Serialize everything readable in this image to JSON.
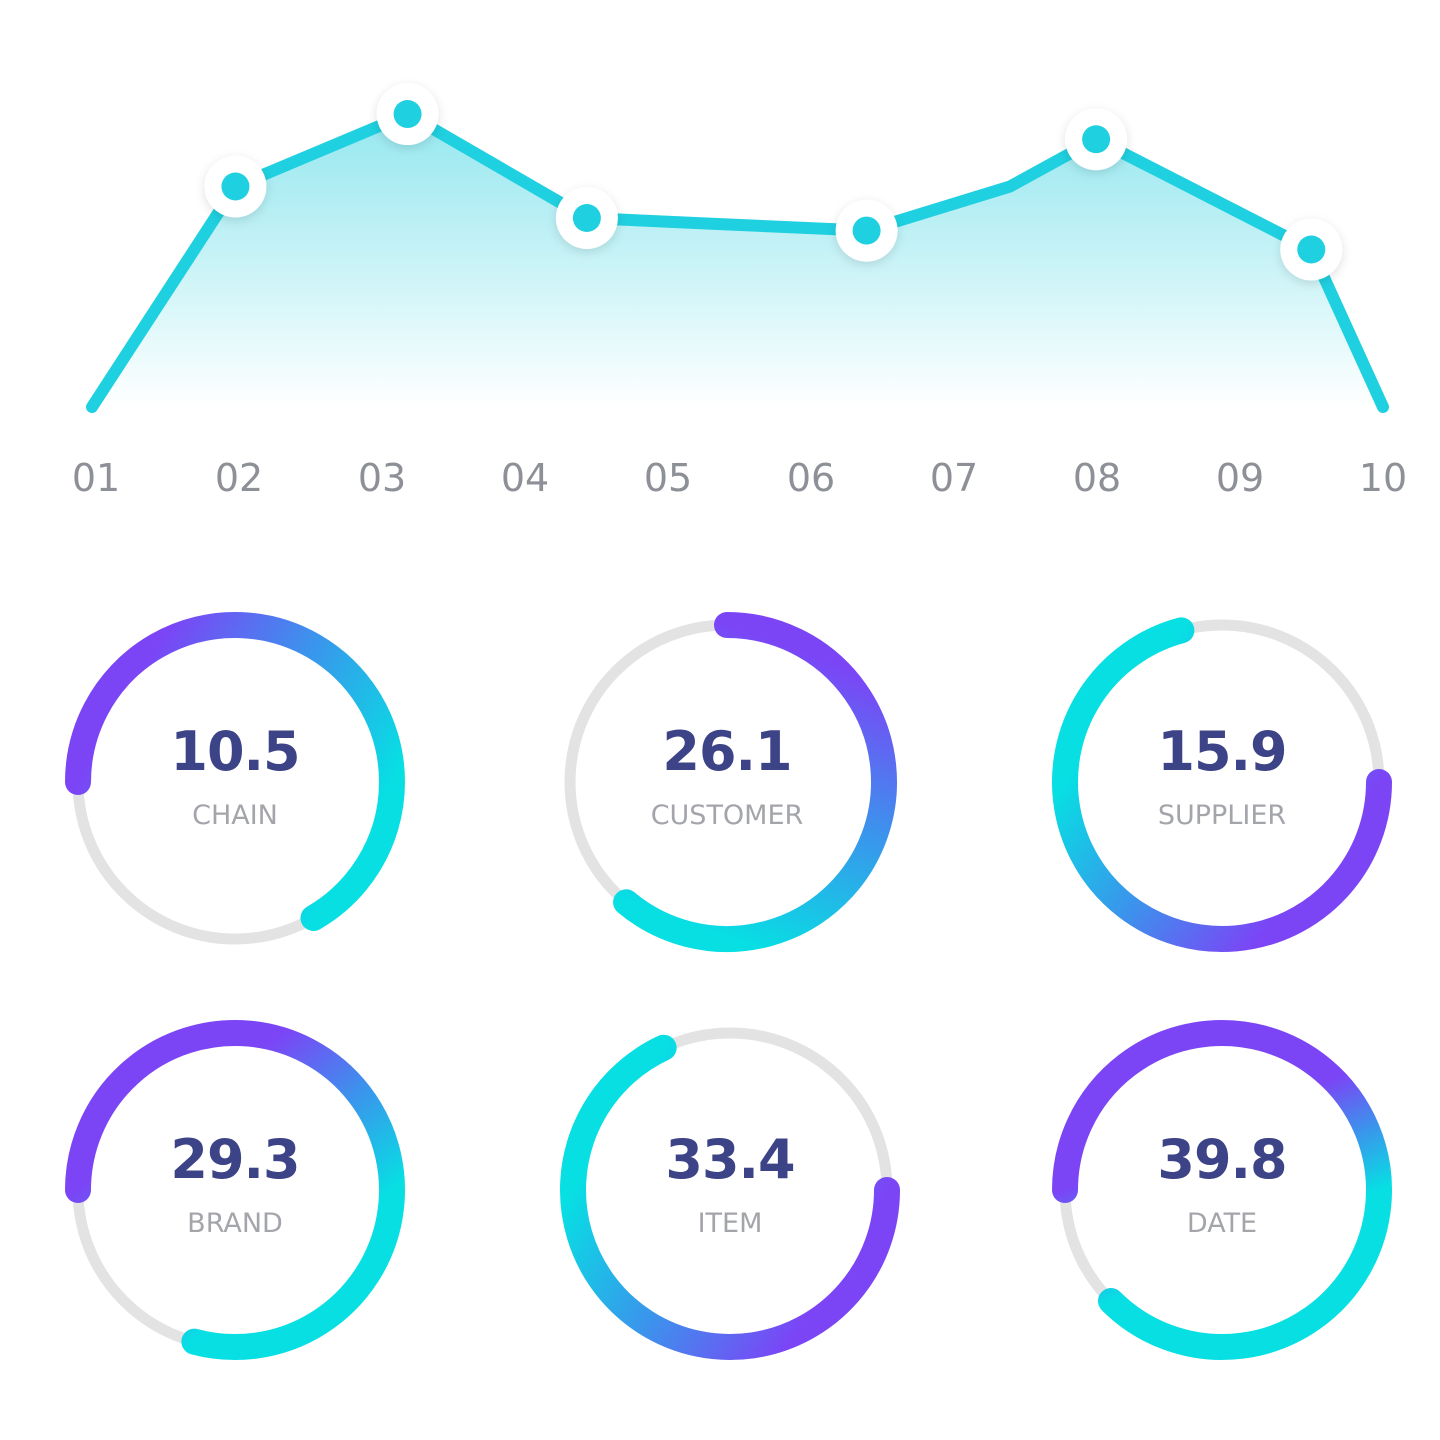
{
  "colors": {
    "line": "#1fd0e0",
    "area_top": "#8fe6ee",
    "area_bottom": "#ffffff",
    "marker_fill": "#ffffff",
    "marker_dot": "#1fd0e0",
    "tick_text": "#8e9097",
    "track": "#e3e3e3",
    "gradient_start": "#7b45f6",
    "gradient_mid": "#3a95ec",
    "gradient_end": "#07dfe3",
    "gauge_value_text": "#3c4386",
    "gauge_label_text": "#a3a5ab"
  },
  "chart_data": [
    {
      "type": "area",
      "categories": [
        "01",
        "02",
        "03",
        "04",
        "05",
        "06",
        "07",
        "08",
        "09",
        "10"
      ],
      "series": [
        {
          "x": [
            1,
            2.0,
            3.2,
            4.45,
            5.4,
            6.4,
            7.4,
            8.0,
            9.5,
            10
          ],
          "values": [
            0,
            7.0,
            9.3,
            6.0,
            5.8,
            5.6,
            7.0,
            8.5,
            5.0,
            0
          ],
          "markers": [
            false,
            true,
            true,
            true,
            false,
            true,
            false,
            true,
            true,
            false
          ]
        }
      ],
      "ylim": [
        0,
        10
      ]
    },
    {
      "type": "gauge",
      "items": [
        {
          "value": "10.5",
          "label": "CHAIN",
          "start_deg": 180,
          "end_deg": 420
        },
        {
          "value": "26.1",
          "label": "CUSTOMER",
          "start_deg": 270,
          "end_deg": 490
        },
        {
          "value": "15.9",
          "label": "SUPPLIER",
          "start_deg": 0,
          "end_deg": 255
        },
        {
          "value": "29.3",
          "label": "BRAND",
          "start_deg": 180,
          "end_deg": 465
        },
        {
          "value": "33.4",
          "label": "ITEM",
          "start_deg": 0,
          "end_deg": 245
        },
        {
          "value": "39.8",
          "label": "DATE",
          "start_deg": 180,
          "end_deg": 495
        }
      ]
    }
  ]
}
